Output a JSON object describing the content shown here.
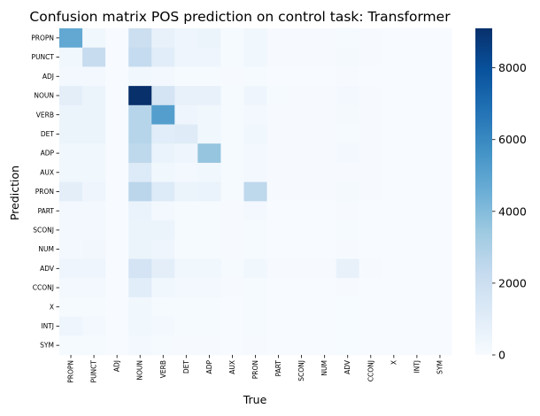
{
  "chart_data": {
    "type": "heatmap",
    "title": "Confusion matrix POS prediction on control task: Transformer",
    "xlabel": "True",
    "ylabel": "Prediction",
    "x_categories": [
      "PROPN",
      "PUNCT",
      "ADJ",
      "NOUN",
      "VERB",
      "DET",
      "ADP",
      "AUX",
      "PRON",
      "PART",
      "SCONJ",
      "NUM",
      "ADV",
      "CCONJ",
      "X",
      "INTJ",
      "SYM"
    ],
    "y_categories": [
      "PROPN",
      "PUNCT",
      "ADJ",
      "NOUN",
      "VERB",
      "DET",
      "ADP",
      "AUX",
      "PRON",
      "PART",
      "SCONJ",
      "NUM",
      "ADV",
      "CCONJ",
      "X",
      "INTJ",
      "SYM"
    ],
    "values": [
      [
        4800,
        300,
        0,
        2000,
        700,
        400,
        500,
        100,
        300,
        50,
        50,
        50,
        100,
        50,
        20,
        20,
        20
      ],
      [
        300,
        2200,
        0,
        2300,
        1000,
        400,
        400,
        100,
        300,
        50,
        50,
        50,
        150,
        50,
        20,
        20,
        20
      ],
      [
        200,
        200,
        0,
        300,
        200,
        100,
        100,
        50,
        100,
        20,
        20,
        20,
        50,
        20,
        10,
        10,
        10
      ],
      [
        900,
        500,
        0,
        9100,
        1600,
        700,
        700,
        100,
        400,
        100,
        50,
        50,
        200,
        50,
        20,
        20,
        20
      ],
      [
        500,
        500,
        0,
        2700,
        5200,
        400,
        300,
        100,
        200,
        50,
        50,
        50,
        150,
        50,
        20,
        20,
        20
      ],
      [
        500,
        500,
        0,
        2700,
        1000,
        1100,
        300,
        100,
        300,
        50,
        50,
        50,
        100,
        50,
        20,
        20,
        20
      ],
      [
        300,
        300,
        0,
        2500,
        600,
        400,
        3600,
        100,
        200,
        50,
        50,
        50,
        200,
        50,
        20,
        20,
        20
      ],
      [
        300,
        300,
        0,
        1200,
        300,
        200,
        300,
        100,
        200,
        50,
        50,
        50,
        50,
        50,
        20,
        20,
        20
      ],
      [
        900,
        400,
        0,
        2600,
        1200,
        500,
        600,
        100,
        2500,
        50,
        50,
        50,
        150,
        50,
        20,
        20,
        20
      ],
      [
        200,
        200,
        0,
        600,
        200,
        100,
        100,
        50,
        200,
        20,
        20,
        20,
        50,
        20,
        10,
        10,
        10
      ],
      [
        200,
        200,
        0,
        500,
        500,
        100,
        100,
        50,
        100,
        20,
        20,
        20,
        100,
        20,
        10,
        10,
        10
      ],
      [
        200,
        250,
        0,
        500,
        400,
        100,
        100,
        50,
        100,
        20,
        20,
        20,
        50,
        20,
        10,
        10,
        10
      ],
      [
        400,
        400,
        0,
        1600,
        900,
        300,
        300,
        100,
        300,
        50,
        50,
        50,
        700,
        50,
        20,
        20,
        20
      ],
      [
        200,
        200,
        0,
        1000,
        300,
        200,
        200,
        50,
        100,
        20,
        20,
        20,
        50,
        20,
        10,
        10,
        10
      ],
      [
        100,
        100,
        0,
        300,
        100,
        100,
        100,
        20,
        100,
        10,
        10,
        10,
        30,
        10,
        10,
        10,
        10
      ],
      [
        400,
        200,
        0,
        300,
        200,
        100,
        100,
        20,
        100,
        10,
        10,
        10,
        30,
        10,
        10,
        10,
        10
      ],
      [
        100,
        100,
        0,
        200,
        100,
        50,
        50,
        20,
        50,
        10,
        10,
        10,
        30,
        10,
        10,
        10,
        10
      ]
    ],
    "colorbar_range": [
      0,
      9100
    ],
    "colorbar_ticks": [
      0,
      2000,
      4000,
      6000,
      8000
    ],
    "colormap": [
      "#f7fbff",
      "#deebf7",
      "#c6dbef",
      "#9ecae1",
      "#6baed6",
      "#4292c6",
      "#2171b5",
      "#08519c",
      "#08306b"
    ],
    "grid": false
  }
}
